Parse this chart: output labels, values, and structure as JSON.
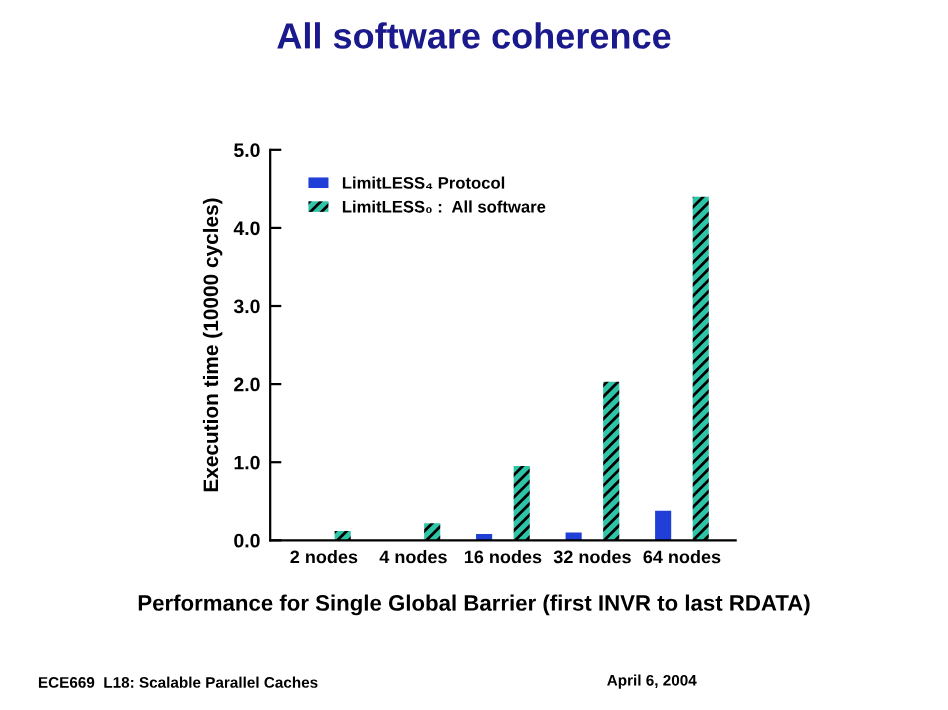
{
  "chart_data": {
    "type": "bar",
    "title": "All software coherence",
    "categories": [
      "2 nodes",
      "4 nodes",
      "16 nodes",
      "32 nodes",
      "64 nodes"
    ],
    "series": [
      {
        "name": "LimitLESS₄ Protocol",
        "color": "#1f3fd6",
        "values": [
          0,
          0,
          0.08,
          0.1,
          0.38
        ]
      },
      {
        "name": "LimitLESS₀ :  All software",
        "color": "#2ec4a8",
        "values": [
          0.12,
          0.22,
          0.95,
          2.03,
          4.4
        ]
      }
    ],
    "ylabel": "Execution time (10000 cycles)",
    "ylim": [
      0,
      5
    ],
    "yticks": [
      {
        "value": 0,
        "label": "0.0"
      },
      {
        "value": 1,
        "label": "1.0"
      },
      {
        "value": 2,
        "label": "2.0"
      },
      {
        "value": 3,
        "label": "3.0"
      },
      {
        "value": 4,
        "label": "4.0"
      },
      {
        "value": 5,
        "label": "5.0"
      }
    ],
    "legend": "top left",
    "grid": false,
    "annotations": [
      "Performance for Single Global Barrier (first INVR to last RDATA)",
      "ECE669  L18: Scalable Parallel Caches",
      "April 6, 2004"
    ]
  }
}
